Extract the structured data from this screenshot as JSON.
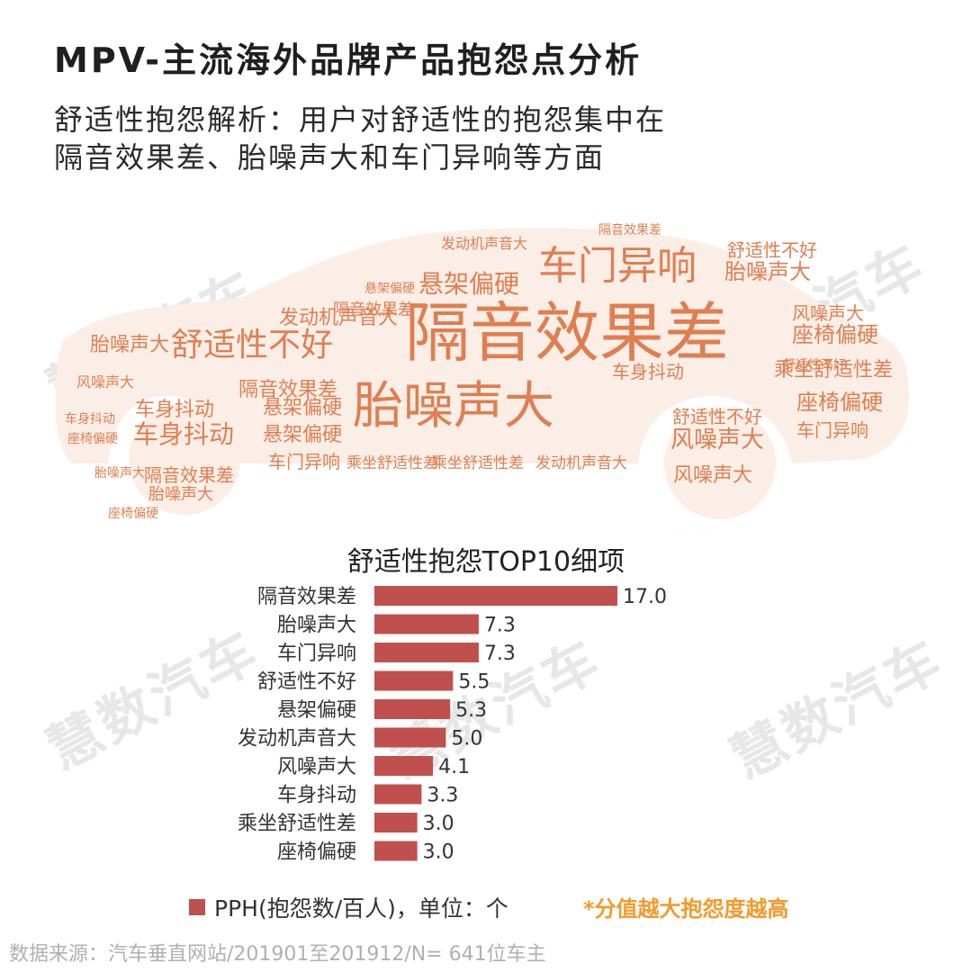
{
  "title": "MPV-主流海外品牌产品抱怨点分析",
  "subtitle_lines": [
    "舒适性抱怨解析：用户对舒适性的抱怨集中在",
    "隔音效果差、胎噪声大和车门异响等方面"
  ],
  "watermark": "慧数汽车",
  "word_cloud": {
    "color": "#e07e4f",
    "words": [
      {
        "text": "隔音效果差",
        "weight": 10
      },
      {
        "text": "胎噪声大",
        "weight": 8
      },
      {
        "text": "车门异响",
        "weight": 6
      },
      {
        "text": "舒适性不好",
        "weight": 5
      },
      {
        "text": "悬架偏硬",
        "weight": 4
      },
      {
        "text": "座椅偏硬",
        "weight": 4
      },
      {
        "text": "车身抖动",
        "weight": 4
      },
      {
        "text": "风噪声大",
        "weight": 4
      },
      {
        "text": "乘坐舒适性差",
        "weight": 3
      },
      {
        "text": "发动机声音大",
        "weight": 3
      }
    ]
  },
  "chart_data": {
    "type": "bar",
    "orientation": "horizontal",
    "title": "舒适性抱怨TOP10细项",
    "categories": [
      "隔音效果差",
      "胎噪声大",
      "车门异响",
      "舒适性不好",
      "悬架偏硬",
      "发动机声音大",
      "风噪声大",
      "车身抖动",
      "乘坐舒适性差",
      "座椅偏硬"
    ],
    "values": [
      17.0,
      7.3,
      7.3,
      5.5,
      5.3,
      5.0,
      4.1,
      3.3,
      3.0,
      3.0
    ],
    "value_labels": [
      "17.0",
      "7.3",
      "7.3",
      "5.5",
      "5.3",
      "5.0",
      "4.1",
      "3.3",
      "3.0",
      "3.0"
    ],
    "bar_color": "#c0504d",
    "xlim": [
      0,
      17.0
    ],
    "grid": false
  },
  "legend": "PPH(抱怨数/百人)，单位：个",
  "note": "*分值越大抱怨度越高",
  "source": "数据来源：汽车垂直网站/201901至201912/N= 641位车主"
}
